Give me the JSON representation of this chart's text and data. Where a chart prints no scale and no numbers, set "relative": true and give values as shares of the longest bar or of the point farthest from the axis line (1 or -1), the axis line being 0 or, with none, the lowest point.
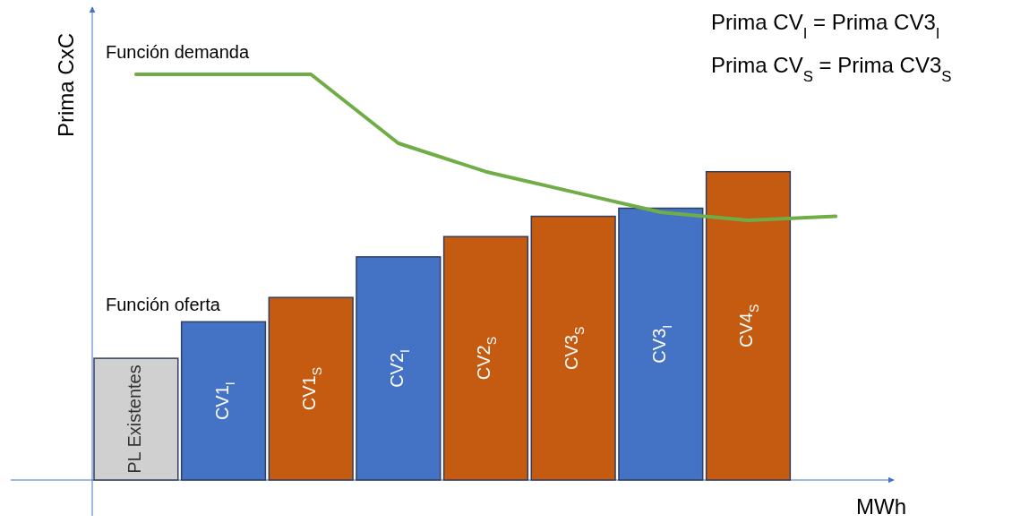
{
  "chart_data": {
    "type": "bar",
    "relative": true,
    "xlabel": "MWh",
    "ylabel": "Prima CxC",
    "categories": [
      "PL Existentes",
      "CV1$_{I}$",
      "CV1$_{S}$",
      "CV2$_{I}$",
      "CV2$_{S}$",
      "CV3$_{S}$",
      "CV3$_{I}$",
      "CV4$_{S}$",
      null
    ],
    "series": [
      {
        "name": "Función oferta",
        "colors": [
          "#d0d0d0",
          "#4472c4",
          "#c55a11",
          "#4472c4",
          "#c55a11",
          "#c55a11",
          "#4472c4",
          "#c55a11",
          null
        ],
        "values": [
          0.3,
          0.39,
          0.45,
          0.55,
          0.6,
          0.65,
          0.67,
          0.76,
          null
        ]
      },
      {
        "name": "Función demanda",
        "type": "line",
        "color": "#70ad47",
        "values": [
          1,
          1,
          1,
          0.83,
          0.76,
          0.71,
          0.66,
          0.64,
          0.65
        ]
      }
    ],
    "annotations": [
      "Prima CV$_{I}$ = Prima CV3$_{I}$",
      "Prima CV$_{S}$ = Prima CV3$_{S}$"
    ]
  }
}
